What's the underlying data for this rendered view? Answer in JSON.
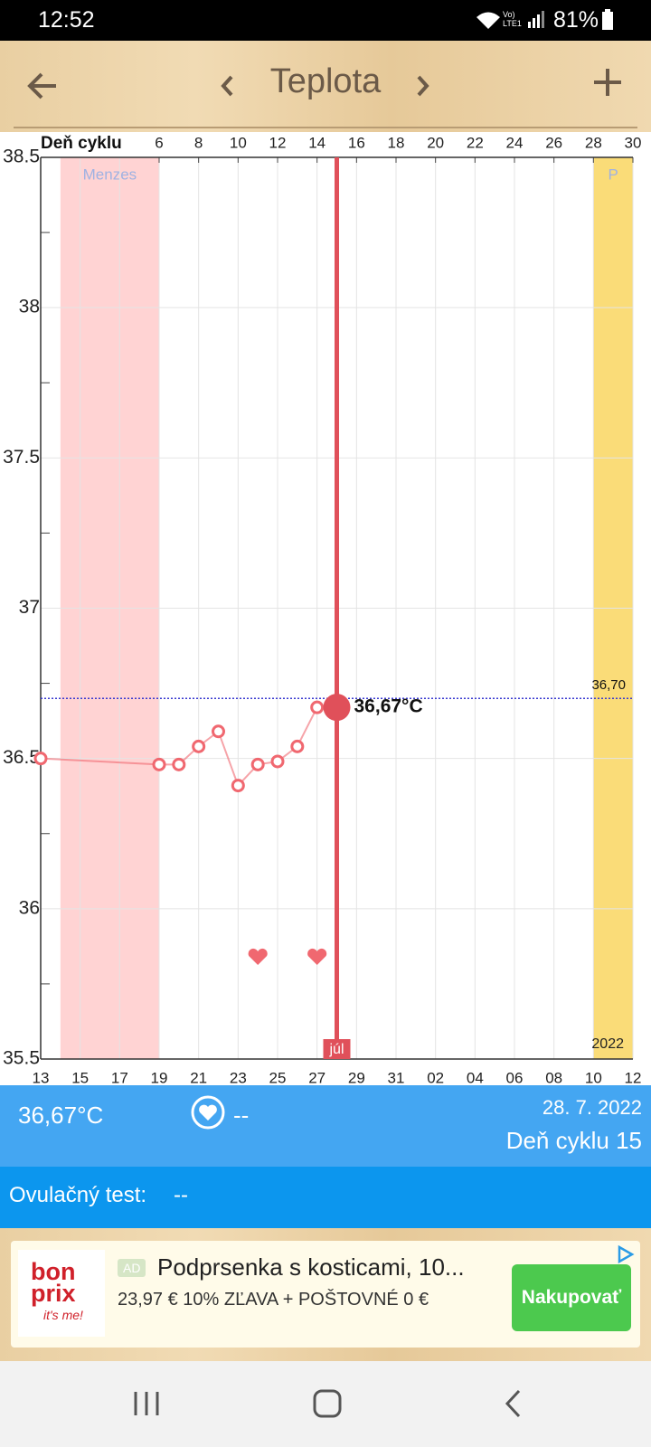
{
  "status_bar": {
    "time": "12:52",
    "network": "Vo) LTE1",
    "battery": "81%"
  },
  "header": {
    "title": "Teplota"
  },
  "chart_data": {
    "type": "line",
    "x_axis_title": "Deň cyklu",
    "xlim": [
      0,
      30
    ],
    "x_top_ticks": [
      6,
      8,
      10,
      12,
      14,
      16,
      18,
      20,
      22,
      24,
      26,
      28,
      30
    ],
    "xticks": [
      {
        "value": 0,
        "label": "13"
      },
      {
        "value": 2,
        "label": "15"
      },
      {
        "value": 4,
        "label": "17"
      },
      {
        "value": 6,
        "label": "19"
      },
      {
        "value": 8,
        "label": "21"
      },
      {
        "value": 10,
        "label": "23"
      },
      {
        "value": 12,
        "label": "25"
      },
      {
        "value": 14,
        "label": "27"
      },
      {
        "value": 16,
        "label": "29"
      },
      {
        "value": 18,
        "label": "31"
      },
      {
        "value": 20,
        "label": "02"
      },
      {
        "value": 22,
        "label": "04"
      },
      {
        "value": 24,
        "label": "06"
      },
      {
        "value": 26,
        "label": "08"
      },
      {
        "value": 28,
        "label": "10"
      },
      {
        "value": 30,
        "label": "12"
      }
    ],
    "ylim": [
      35.5,
      38.5
    ],
    "yticks": [
      35.5,
      36,
      36.5,
      37,
      37.5,
      38,
      38.5
    ],
    "y_minor_ticks": [
      35.75,
      36.25,
      36.75,
      37.25,
      37.75,
      38.25
    ],
    "grid": true,
    "series": [
      {
        "color": "#f06870",
        "x": [
          0,
          6,
          7,
          8,
          9,
          10,
          11,
          12,
          13,
          14
        ],
        "values": [
          36.5,
          36.48,
          36.48,
          36.54,
          36.59,
          36.41,
          36.48,
          36.49,
          36.54,
          36.67
        ]
      }
    ],
    "current": {
      "x": 15,
      "value": 36.67,
      "label": "36,67°C",
      "month_label": "júl",
      "color": "#e0505a"
    },
    "reference_line": {
      "value": 36.7,
      "label": "36,70",
      "color": "#3a3ad0"
    },
    "bands": [
      {
        "label": "Menzes",
        "x": [
          1,
          6
        ],
        "color": "#ffd3d3"
      },
      {
        "label": "P",
        "x": [
          28,
          30
        ],
        "color": "#fadc78"
      }
    ],
    "hearts": {
      "x": [
        11,
        14
      ],
      "values": [
        35.84,
        35.84
      ],
      "color": "#f06870"
    },
    "year_label": "2022"
  },
  "info": {
    "temperature": "36,67°C",
    "intercourse": "--",
    "date": "28. 7. 2022",
    "cycle_day": "Deň cyklu 15"
  },
  "ovulation": {
    "label": "Ovulačný test:",
    "value": "--"
  },
  "ad": {
    "brand_line1": "bon",
    "brand_line2": "prix",
    "brand_tagline": "it's me!",
    "badge": "AD",
    "title": "Podprsenka s kosticami, 10...",
    "subtitle": "23,97 € 10% ZĽAVA + POŠTOVNÉ 0 €",
    "button": "Nakupovať"
  }
}
